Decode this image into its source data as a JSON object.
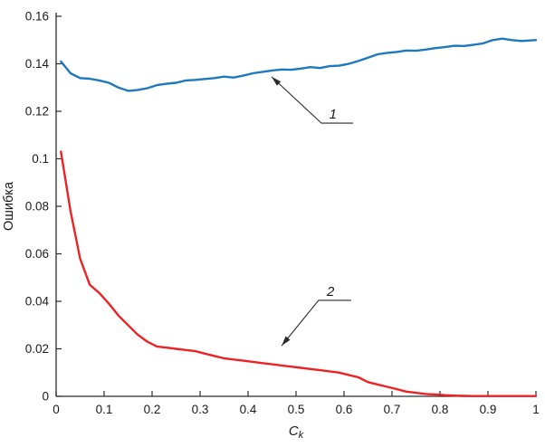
{
  "page": {
    "background": "#ffffff",
    "description": "Line chart of error (Ошибка) versus coefficient Ck with two curves labeled 1 (blue) and 2 (red) via arrow callouts"
  },
  "chart_data": {
    "type": "line",
    "title": "",
    "ylabel": "Ошибка",
    "xlabel_base": "C",
    "xlabel_sub": "k",
    "xlim": [
      0,
      1
    ],
    "ylim": [
      0,
      0.16
    ],
    "grid": false,
    "legend_position": "none",
    "axis_color": "#2b2b2b",
    "line_width": 2.4,
    "x_ticks": [
      0,
      0.1,
      0.2,
      0.3,
      0.4,
      0.5,
      0.6,
      0.7,
      0.8,
      0.9,
      1
    ],
    "x_tick_labels": [
      "0",
      "0.1",
      "0.2",
      "0.3",
      "0.4",
      "0.5",
      "0.6",
      "0.7",
      "0.8",
      "0.9",
      "1"
    ],
    "y_ticks": [
      0,
      0.02,
      0.04,
      0.06,
      0.08,
      0.1,
      0.12,
      0.14,
      0.16
    ],
    "y_tick_labels": [
      "0",
      "0.02",
      "0.04",
      "0.06",
      "0.08",
      "0.1",
      "0.12",
      "0.14",
      "0.16"
    ],
    "x": [
      0.01,
      0.03,
      0.05,
      0.07,
      0.09,
      0.11,
      0.13,
      0.15,
      0.17,
      0.19,
      0.21,
      0.23,
      0.25,
      0.27,
      0.29,
      0.31,
      0.33,
      0.35,
      0.37,
      0.39,
      0.41,
      0.43,
      0.45,
      0.47,
      0.49,
      0.51,
      0.53,
      0.55,
      0.57,
      0.59,
      0.61,
      0.63,
      0.65,
      0.67,
      0.69,
      0.71,
      0.73,
      0.75,
      0.77,
      0.79,
      0.81,
      0.83,
      0.85,
      0.87,
      0.89,
      0.91,
      0.93,
      0.95,
      0.97,
      1.0
    ],
    "series": [
      {
        "name": "1",
        "color": "#1d78be",
        "values": [
          0.141,
          0.136,
          0.134,
          0.1337,
          0.133,
          0.132,
          0.13,
          0.1286,
          0.129,
          0.1297,
          0.131,
          0.1316,
          0.132,
          0.133,
          0.1332,
          0.1336,
          0.134,
          0.1346,
          0.1342,
          0.135,
          0.136,
          0.1366,
          0.1372,
          0.1376,
          0.1375,
          0.138,
          0.1386,
          0.1382,
          0.139,
          0.1392,
          0.14,
          0.1412,
          0.1426,
          0.144,
          0.1446,
          0.145,
          0.1456,
          0.1455,
          0.146,
          0.1466,
          0.147,
          0.1476,
          0.1475,
          0.148,
          0.1486,
          0.15,
          0.1506,
          0.15,
          0.1496,
          0.15
        ]
      },
      {
        "name": "2",
        "color": "#ed2224",
        "values": [
          0.103,
          0.078,
          0.058,
          0.047,
          0.0435,
          0.039,
          0.034,
          0.03,
          0.026,
          0.023,
          0.021,
          0.0205,
          0.02,
          0.0195,
          0.019,
          0.018,
          0.017,
          0.016,
          0.0155,
          0.015,
          0.0145,
          0.014,
          0.0135,
          0.013,
          0.0125,
          0.012,
          0.0115,
          0.011,
          0.0105,
          0.01,
          0.009,
          0.008,
          0.006,
          0.005,
          0.004,
          0.003,
          0.002,
          0.0015,
          0.001,
          0.0008,
          0.0005,
          0.0003,
          0.0002,
          0.0001,
          0.0001,
          0.0001,
          0.0001,
          0.0001,
          0.0001,
          0.0001
        ]
      }
    ],
    "annotations": [
      {
        "text": "1",
        "label_x": 0.577,
        "label_y": 0.117,
        "line": [
          [
            0.619,
            0.115
          ],
          [
            0.553,
            0.115
          ],
          [
            0.449,
            0.1345
          ]
        ]
      },
      {
        "text": "2",
        "label_x": 0.572,
        "label_y": 0.0423,
        "line": [
          [
            0.615,
            0.0404
          ],
          [
            0.547,
            0.0404
          ],
          [
            0.47,
            0.0213
          ]
        ]
      }
    ]
  }
}
